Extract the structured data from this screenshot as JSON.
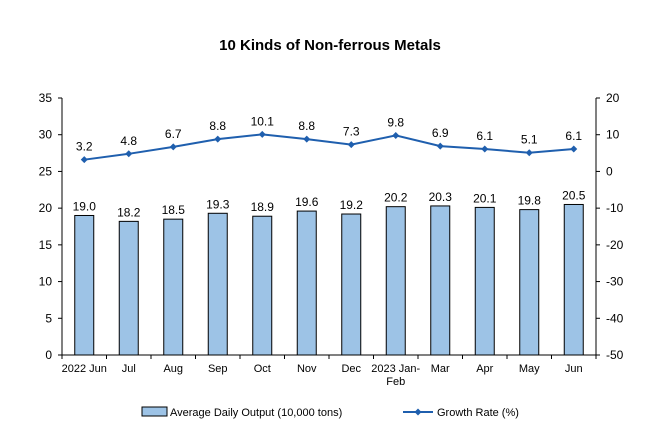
{
  "chart_data": {
    "type": "bar+line",
    "title": "10 Kinds of Non-ferrous Metals",
    "categories": [
      "2022 Jun",
      "Jul",
      "Aug",
      "Sep",
      "Oct",
      "Nov",
      "Dec",
      "2023 Jan-Feb",
      "Mar",
      "Apr",
      "May",
      "Jun"
    ],
    "series": [
      {
        "name": "Average Daily Output (10,000 tons)",
        "type": "bar",
        "axis": "left",
        "values": [
          19.0,
          18.2,
          18.5,
          19.3,
          18.9,
          19.6,
          19.2,
          20.2,
          20.3,
          20.1,
          19.8,
          20.5
        ],
        "labels": [
          "19.0",
          "18.2",
          "18.5",
          "19.3",
          "18.9",
          "19.6",
          "19.2",
          "20.2",
          "20.3",
          "20.1",
          "19.8",
          "20.5"
        ],
        "color": "#9dc3e6",
        "border_color": "#000000"
      },
      {
        "name": "Growth Rate (%)",
        "type": "line",
        "axis": "right",
        "values": [
          3.2,
          4.8,
          6.7,
          8.8,
          10.1,
          8.8,
          7.3,
          9.8,
          6.9,
          6.1,
          5.1,
          6.1
        ],
        "labels": [
          "3.2",
          "4.8",
          "6.7",
          "8.8",
          "10.1",
          "8.8",
          "7.3",
          "9.8",
          "6.9",
          "6.1",
          "5.1",
          "6.1"
        ],
        "color": "#1f5fae"
      }
    ],
    "y_left": {
      "min": 0,
      "max": 35,
      "ticks": [
        0,
        5,
        10,
        15,
        20,
        25,
        30,
        35
      ]
    },
    "y_right": {
      "min": -50,
      "max": 20,
      "ticks": [
        -50,
        -40,
        -30,
        -20,
        -10,
        0,
        10,
        20
      ]
    },
    "grid": false,
    "legend_position": "bottom"
  }
}
